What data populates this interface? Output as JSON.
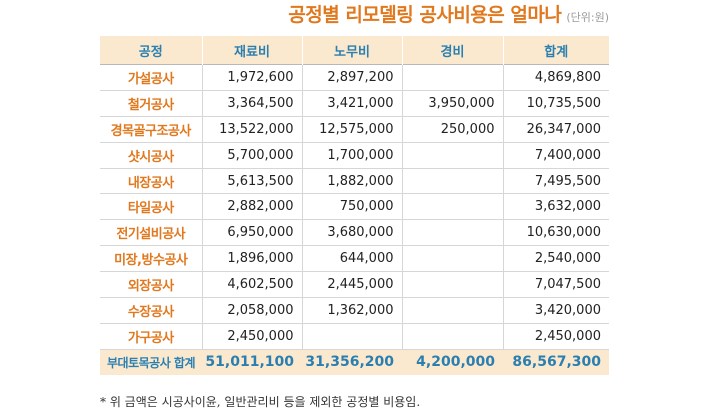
{
  "title": "공정별 리모델링 공사비용은 얼마나",
  "unit": "(단위:원)",
  "headers": [
    "공정",
    "재료비",
    "노무비",
    "경비",
    "합계"
  ],
  "rows": [
    {
      "process": "가설공사",
      "material": "1,972,600",
      "labor": "2,897,200",
      "expense": "",
      "total": "4,869,800"
    },
    {
      "process": "철거공사",
      "material": "3,364,500",
      "labor": "3,421,000",
      "expense": "3,950,000",
      "total": "10,735,500"
    },
    {
      "process": "경목골구조공사",
      "material": "13,522,000",
      "labor": "12,575,000",
      "expense": "250,000",
      "total": "26,347,000"
    },
    {
      "process": "샷시공사",
      "material": "5,700,000",
      "labor": "1,700,000",
      "expense": "",
      "total": "7,400,000"
    },
    {
      "process": "내장공사",
      "material": "5,613,500",
      "labor": "1,882,000",
      "expense": "",
      "total": "7,495,500"
    },
    {
      "process": "타일공사",
      "material": "2,882,000",
      "labor": "750,000",
      "expense": "",
      "total": "3,632,000"
    },
    {
      "process": "전기설비공사",
      "material": "6,950,000",
      "labor": "3,680,000",
      "expense": "",
      "total": "10,630,000"
    },
    {
      "process": "미장,방수공사",
      "material": "1,896,000",
      "labor": "644,000",
      "expense": "",
      "total": "2,540,000"
    },
    {
      "process": "외장공사",
      "material": "4,602,500",
      "labor": "2,445,000",
      "expense": "",
      "total": "7,047,500"
    },
    {
      "process": "수장공사",
      "material": "2,058,000",
      "labor": "1,362,000",
      "expense": "",
      "total": "3,420,000"
    },
    {
      "process": "가구공사",
      "material": "2,450,000",
      "labor": "",
      "expense": "",
      "total": "2,450,000"
    }
  ],
  "total": {
    "process": "부대토목공사 합계",
    "material": "51,011,100",
    "labor": "31,356,200",
    "expense": "4,200,000",
    "total": "86,567,300"
  },
  "footnote": "* 위 금액은 시공사이윤, 일반관리비 등을 제외한 공정별 비용임.",
  "colors": {
    "title": "#e0781e",
    "process_name": "#e0781e",
    "header_text": "#2a7fb0",
    "header_bg": "#fbe9cf",
    "total_text": "#2a7fb0"
  }
}
